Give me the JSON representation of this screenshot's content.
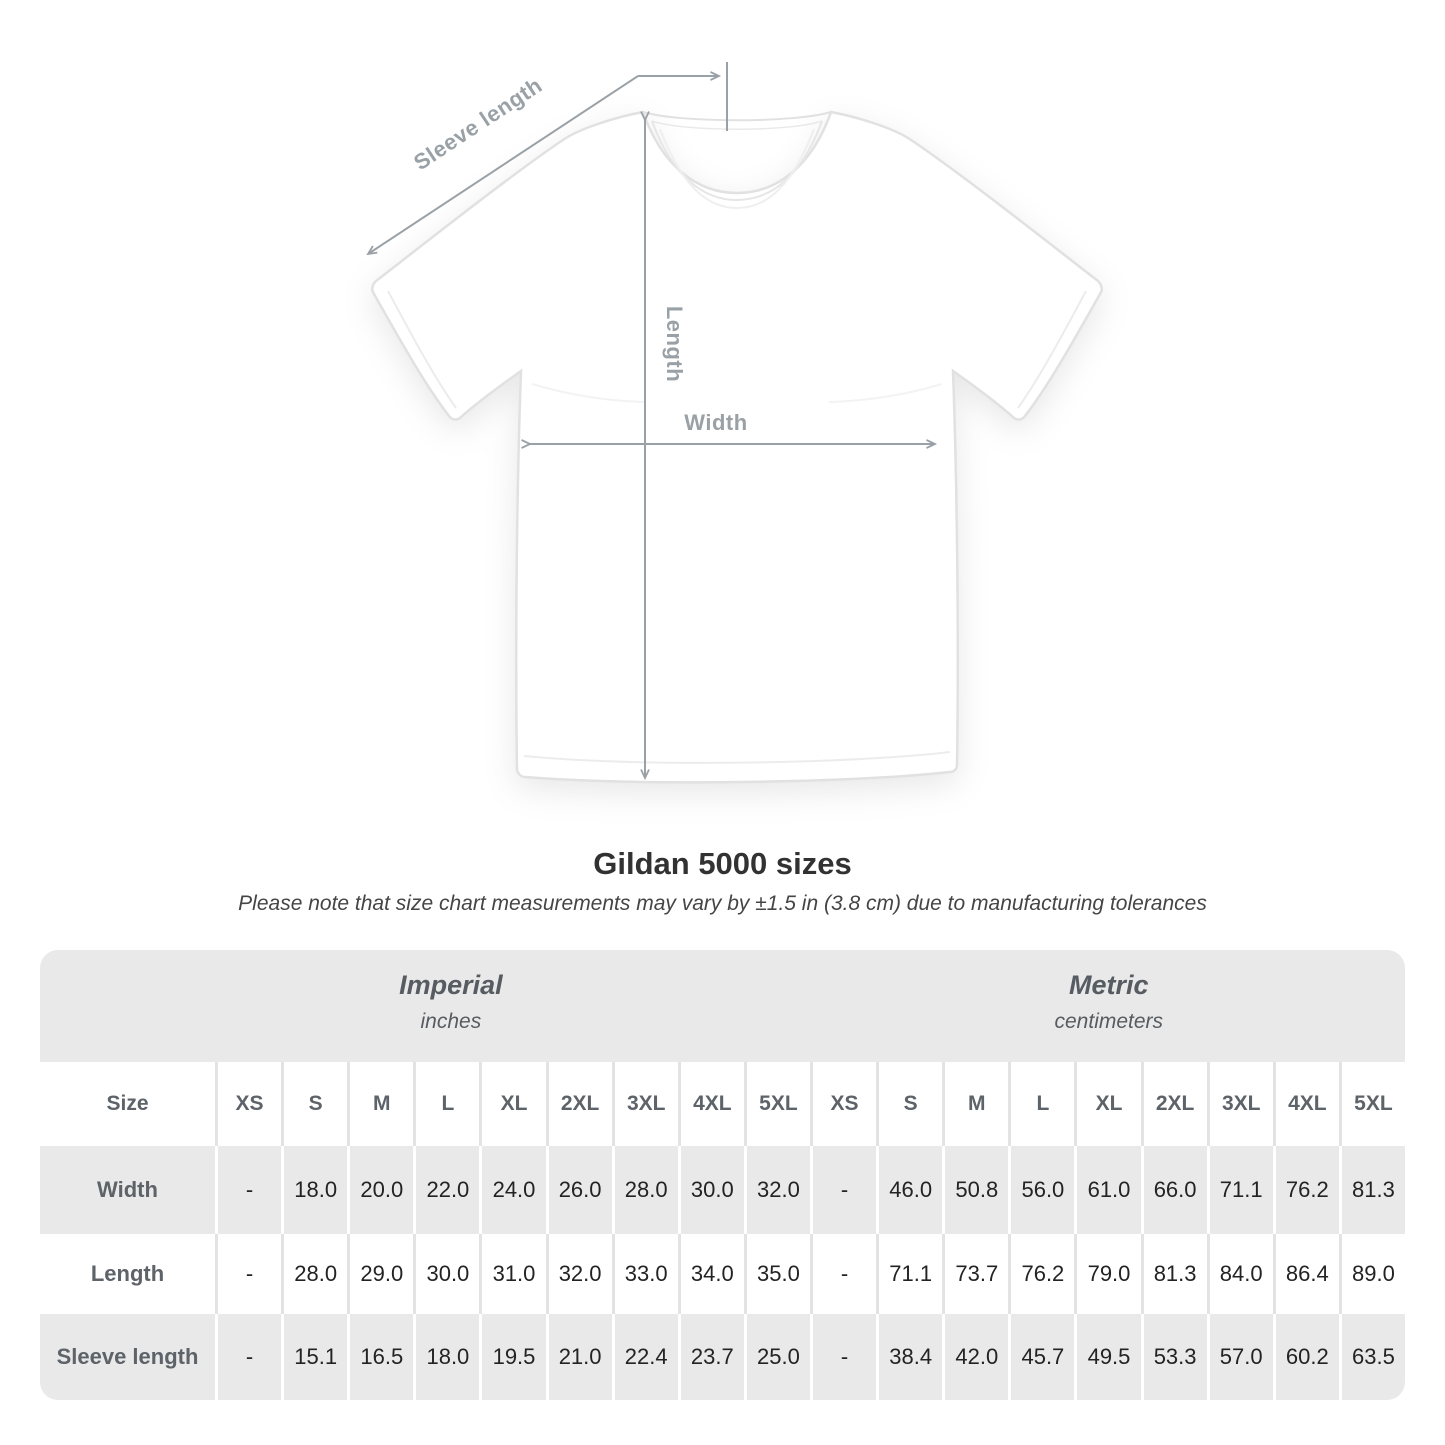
{
  "diagram": {
    "labels": {
      "sleeve_length": "Sleeve length",
      "length": "Length",
      "width": "Width"
    }
  },
  "title": "Gildan 5000 sizes",
  "subtitle": "Please note that size chart measurements may vary by ±1.5 in (3.8 cm) due to manufacturing tolerances",
  "table": {
    "sections": [
      {
        "label": "Imperial",
        "sublabel": "inches"
      },
      {
        "label": "Metric",
        "sublabel": "centimeters"
      }
    ],
    "size_header": "Size",
    "sizes": [
      "XS",
      "S",
      "M",
      "L",
      "XL",
      "2XL",
      "3XL",
      "4XL",
      "5XL"
    ],
    "rows": [
      {
        "label": "Width",
        "imperial": [
          "-",
          "18.0",
          "20.0",
          "22.0",
          "24.0",
          "26.0",
          "28.0",
          "30.0",
          "32.0"
        ],
        "metric": [
          "-",
          "46.0",
          "50.8",
          "56.0",
          "61.0",
          "66.0",
          "71.1",
          "76.2",
          "81.3"
        ]
      },
      {
        "label": "Length",
        "imperial": [
          "-",
          "28.0",
          "29.0",
          "30.0",
          "31.0",
          "32.0",
          "33.0",
          "34.0",
          "35.0"
        ],
        "metric": [
          "-",
          "71.1",
          "73.7",
          "76.2",
          "79.0",
          "81.3",
          "84.0",
          "86.4",
          "89.0"
        ]
      },
      {
        "label": "Sleeve length",
        "imperial": [
          "-",
          "15.1",
          "16.5",
          "18.0",
          "19.5",
          "21.0",
          "22.4",
          "23.7",
          "25.0"
        ],
        "metric": [
          "-",
          "38.4",
          "42.0",
          "45.7",
          "49.5",
          "53.3",
          "57.0",
          "60.2",
          "63.5"
        ]
      }
    ]
  },
  "chart_data": {
    "type": "table",
    "title": "Gildan 5000 sizes",
    "note": "Measurements may vary by ±1.5 in (3.8 cm) due to manufacturing tolerances",
    "units": [
      "inches",
      "centimeters"
    ],
    "sizes": [
      "XS",
      "S",
      "M",
      "L",
      "XL",
      "2XL",
      "3XL",
      "4XL",
      "5XL"
    ],
    "measurements": [
      {
        "name": "Width",
        "inches": [
          null,
          18.0,
          20.0,
          22.0,
          24.0,
          26.0,
          28.0,
          30.0,
          32.0
        ],
        "centimeters": [
          null,
          46.0,
          50.8,
          56.0,
          61.0,
          66.0,
          71.1,
          76.2,
          81.3
        ]
      },
      {
        "name": "Length",
        "inches": [
          null,
          28.0,
          29.0,
          30.0,
          31.0,
          32.0,
          33.0,
          34.0,
          35.0
        ],
        "centimeters": [
          null,
          71.1,
          73.7,
          76.2,
          79.0,
          81.3,
          84.0,
          86.4,
          89.0
        ]
      },
      {
        "name": "Sleeve length",
        "inches": [
          null,
          15.1,
          16.5,
          18.0,
          19.5,
          21.0,
          22.4,
          23.7,
          25.0
        ],
        "centimeters": [
          null,
          38.4,
          42.0,
          45.7,
          49.5,
          53.3,
          57.0,
          60.2,
          63.5
        ]
      }
    ]
  },
  "colors": {
    "page_background": "#ffffff",
    "band_gray": "#e9e9e9",
    "row_stripe_gray": "#e9e9e9",
    "separator_on_white_rows": "#e3e3e3",
    "separator_on_gray_rows": "#ffffff",
    "size_column_separator": "#cfcfcf",
    "annotation_gray": "#9aa1a6",
    "shirt_outline": "#e1e1e1",
    "header_text": "#5d6368",
    "value_text": "#232323",
    "title_text": "#323232",
    "subtitle_text": "#454545"
  }
}
